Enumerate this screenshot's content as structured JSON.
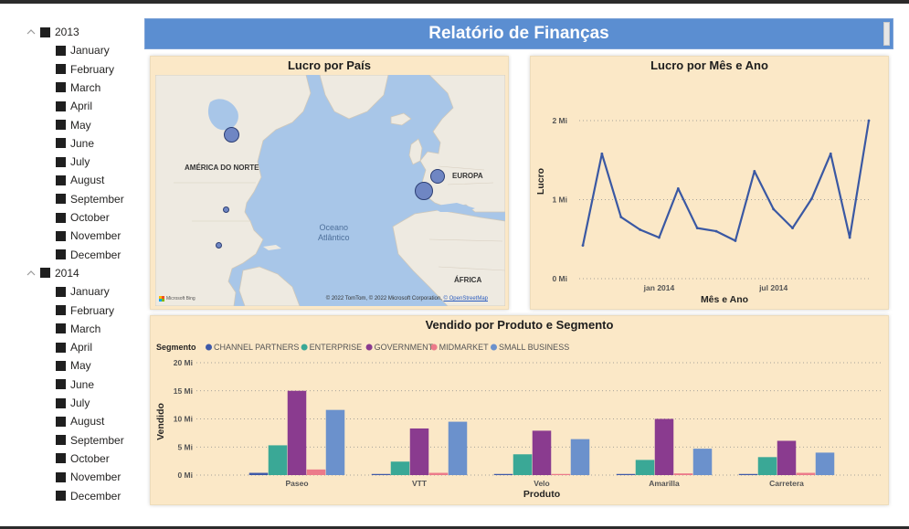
{
  "report_title": "Relatório de Finanças",
  "slicer": {
    "years": [
      {
        "label": "2013",
        "months": [
          "January",
          "February",
          "March",
          "April",
          "May",
          "June",
          "July",
          "August",
          "September",
          "October",
          "November",
          "December"
        ]
      },
      {
        "label": "2014",
        "months": [
          "January",
          "February",
          "March",
          "April",
          "May",
          "June",
          "July",
          "August",
          "September",
          "October",
          "November",
          "December"
        ]
      }
    ]
  },
  "map": {
    "title": "Lucro por País",
    "labels": {
      "north_america": "AMÉRICA DO NORTE",
      "europe": "EUROPA",
      "africa": "ÁFRICA",
      "ocean_line1": "Oceano",
      "ocean_line2": "Atlântico"
    },
    "attribution": "© 2022 TomTom, © 2022 Microsoft Corporation,",
    "attribution_link": "© OpenStreetMap",
    "bing": "Microsoft Bing",
    "bubble_color": "#6f86c3"
  },
  "chart_data": [
    {
      "type": "line",
      "title": "Lucro por Mês e Ano",
      "xlabel": "Mês e Ano",
      "ylabel": "Lucro",
      "x": [
        "2013-09",
        "2013-10",
        "2013-11",
        "2013-12",
        "2014-01",
        "2014-02",
        "2014-03",
        "2014-04",
        "2014-05",
        "2014-06",
        "2014-07",
        "2014-08",
        "2014-09",
        "2014-10",
        "2014-11",
        "2014-12"
      ],
      "values": [
        420000,
        1580000,
        780000,
        620000,
        520000,
        1140000,
        640000,
        600000,
        480000,
        1360000,
        880000,
        640000,
        1010000,
        1580000,
        520000,
        2000000
      ],
      "x_ticks": [
        "jan 2014",
        "jul 2014"
      ],
      "y_ticks": [
        "0 Mi",
        "1 Mi",
        "2 Mi"
      ],
      "ylim": [
        0,
        2000000
      ],
      "grid": true,
      "color": "#3a58a3"
    },
    {
      "type": "bar",
      "title": "Vendido por Produto e Segmento",
      "xlabel": "Produto",
      "ylabel": "Vendido",
      "legend_title": "Segmento",
      "legend_position": "top-left",
      "categories": [
        "Paseo",
        "VTT",
        "Velo",
        "Amarilla",
        "Carretera"
      ],
      "series": [
        {
          "name": "CHANNEL PARTNERS",
          "color": "#3e59a8",
          "values": [
            0.4,
            0.2,
            0.2,
            0.2,
            0.2
          ]
        },
        {
          "name": "ENTERPRISE",
          "color": "#3aa896",
          "values": [
            5.3,
            2.4,
            3.7,
            2.7,
            3.2
          ]
        },
        {
          "name": "GOVERNMENT",
          "color": "#8a3b8f",
          "values": [
            15.0,
            8.3,
            7.9,
            10.0,
            6.1
          ]
        },
        {
          "name": "MIDMARKET",
          "color": "#ec7a8a",
          "values": [
            1.0,
            0.4,
            0.2,
            0.3,
            0.4
          ]
        },
        {
          "name": "SMALL BUSINESS",
          "color": "#6b91cc",
          "values": [
            11.6,
            9.5,
            6.4,
            4.7,
            4.0
          ]
        }
      ],
      "y_ticks": [
        "0 Mi",
        "5 Mi",
        "10 Mi",
        "15 Mi",
        "20 Mi"
      ],
      "ylim": [
        0,
        20
      ],
      "grid": true
    }
  ]
}
